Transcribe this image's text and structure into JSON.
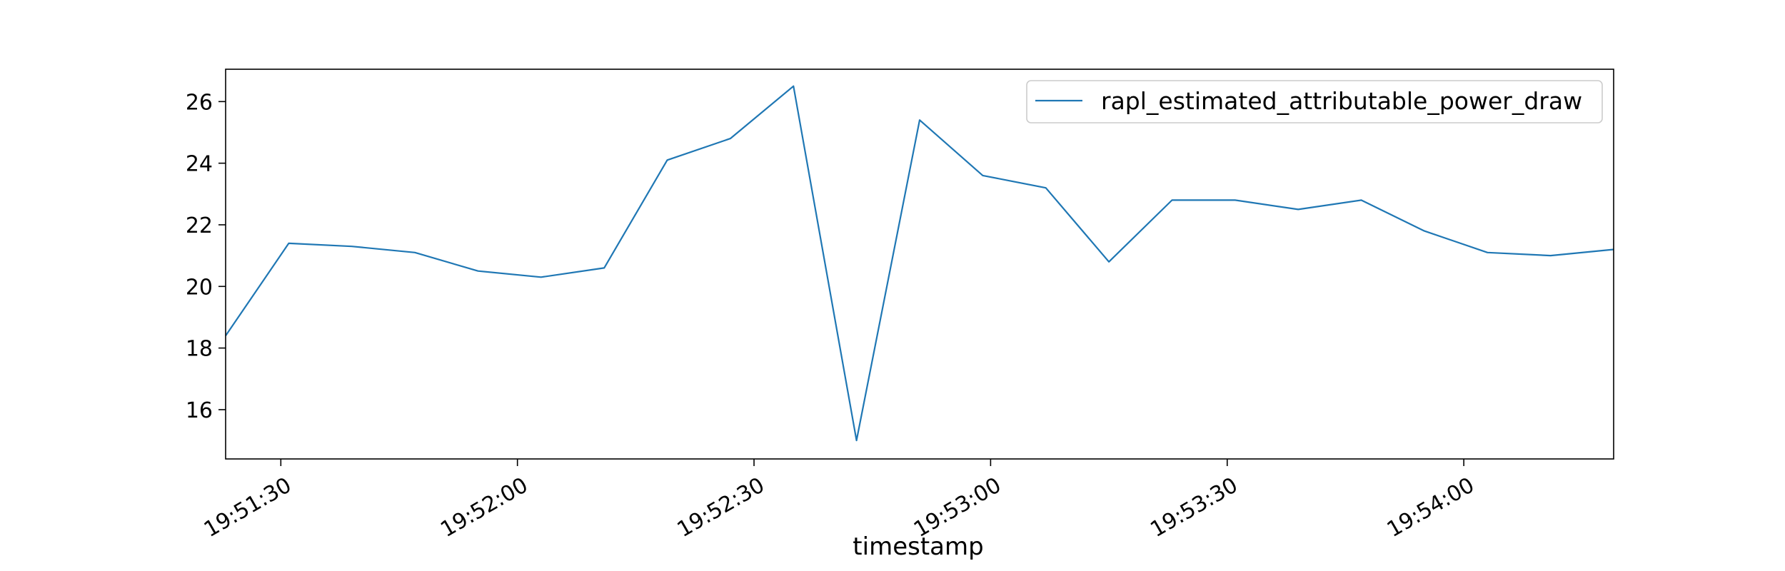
{
  "chart_data": {
    "type": "line",
    "xlabel": "timestamp",
    "ylabel": "",
    "x_tick_labels": [
      "19:51:30",
      "19:52:00",
      "19:52:30",
      "19:53:00",
      "19:53:30",
      "19:54:00"
    ],
    "y_tick_labels": [
      "16",
      "18",
      "20",
      "22",
      "24",
      "26"
    ],
    "y_ticks": [
      16,
      18,
      20,
      22,
      24,
      26
    ],
    "ylim": [
      14.4,
      27.05
    ],
    "xlim": [
      "19:51:23",
      "19:54:19"
    ],
    "grid": false,
    "legend_position": "top-right",
    "colors": {
      "series": "#1f77b4",
      "axes": "#000000"
    },
    "series": [
      {
        "name": "rapl_estimated_attributable_power_draw",
        "x": [
          "19:51:23",
          "19:51:31",
          "19:51:39",
          "19:51:47",
          "19:51:55",
          "19:52:03",
          "19:52:11",
          "19:52:19",
          "19:52:27",
          "19:52:35",
          "19:52:43",
          "19:52:51",
          "19:52:59",
          "19:53:07",
          "19:53:15",
          "19:53:23",
          "19:53:31",
          "19:53:39",
          "19:53:47",
          "19:53:55",
          "19:54:03",
          "19:54:11",
          "19:54:19"
        ],
        "values": [
          18.4,
          21.4,
          21.3,
          21.1,
          20.5,
          20.3,
          20.6,
          24.1,
          24.8,
          26.5,
          15.0,
          25.4,
          23.6,
          23.2,
          20.8,
          22.8,
          22.8,
          22.5,
          22.8,
          21.8,
          21.1,
          21.0,
          21.2
        ]
      }
    ]
  }
}
